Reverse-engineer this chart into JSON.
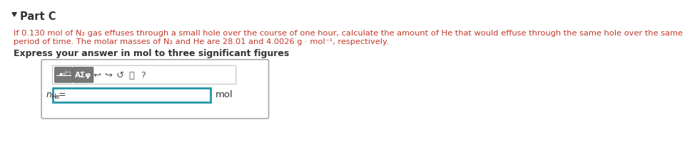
{
  "bg_color": "#ffffff",
  "light_gray": "#f0f0f0",
  "white": "#ffffff",
  "part_label": "Part C",
  "body_text_color": "#c0392b",
  "dark_text": "#333333",
  "line1": "If 0.130 mol of N₂ gas effuses through a small hole over the course of one hour, calculate the amount of He that would effuse through the same hole over the same",
  "line2": "period of time. The molar masses of N₂ and He are 28.01 and 4.0026 g · mol⁻¹, respectively.",
  "express_line": "Express your answer in mol to three significant figures",
  "mol_label": "mol",
  "btn1_color": "#777777",
  "btn2_color": "#777777",
  "input_border_color": "#2196a8",
  "outer_box_border": "#aaaaaa",
  "toolbar_border": "#cccccc",
  "font_size_body": 8.2,
  "font_size_part": 10.5,
  "font_size_express": 9.0,
  "font_size_btn": 7.5,
  "font_size_icons": 9.5,
  "font_size_nhe": 9.0,
  "font_size_mol": 9.5
}
